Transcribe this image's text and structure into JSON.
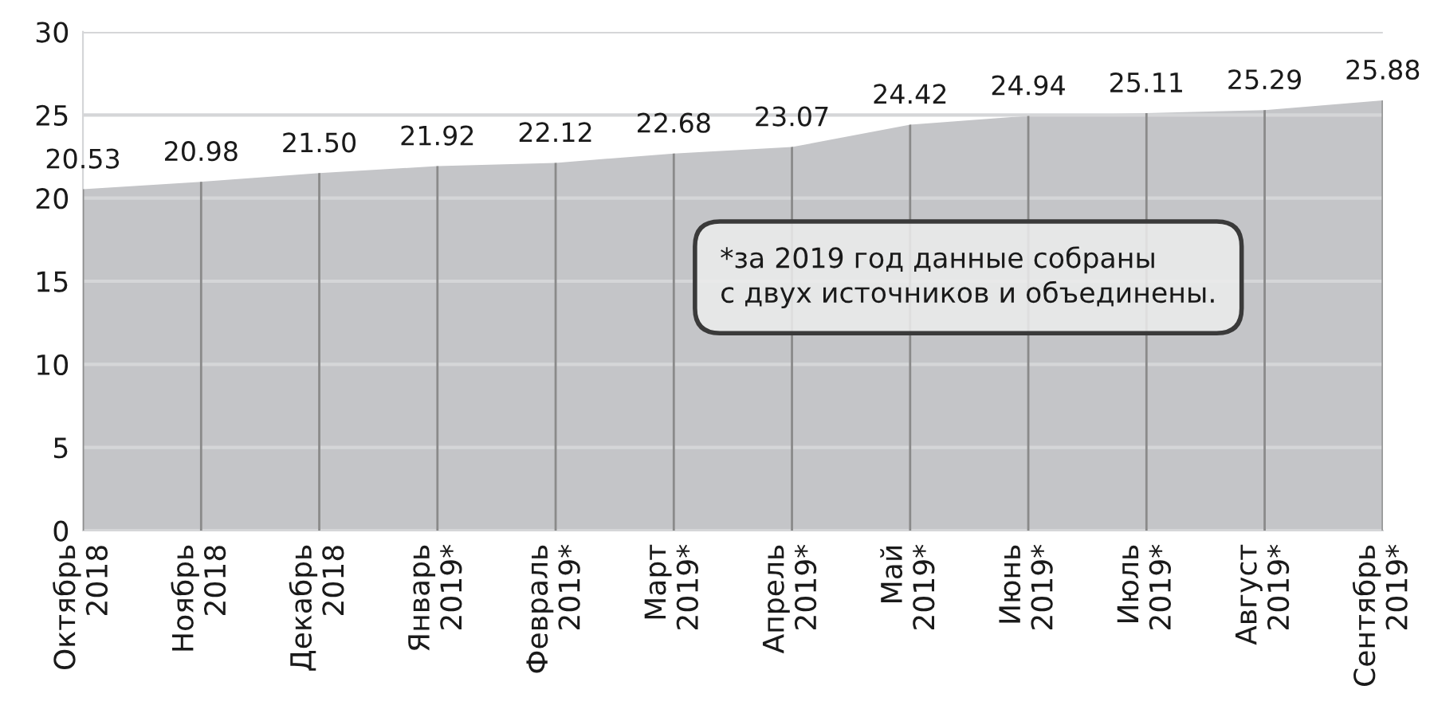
{
  "chart_data": {
    "type": "area",
    "categories": [
      "Октябрь\n2018",
      "Ноябрь\n2018",
      "Декабрь\n2018",
      "Январь\n2019*",
      "Февраль\n2019*",
      "Март\n2019*",
      "Апрель\n2019*",
      "Май\n2019*",
      "Июнь\n2019*",
      "Июль\n2019*",
      "Август\n2019*",
      "Сентябрь\n2019*"
    ],
    "values": [
      20.53,
      20.98,
      21.5,
      21.92,
      22.12,
      22.68,
      23.07,
      24.42,
      24.94,
      25.11,
      25.29,
      25.88
    ],
    "value_labels": [
      "20.53",
      "20.98",
      "21.50",
      "21.92",
      "22.12",
      "22.68",
      "23.07",
      "24.42",
      "24.94",
      "25.11",
      "25.29",
      "25.88"
    ],
    "color": "#c4c5c8",
    "ylim": [
      0,
      30
    ],
    "yticks": [
      0,
      5,
      10,
      15,
      20,
      25,
      30
    ],
    "grid": true,
    "annotations": [
      "*за 2019 год данные собраны\nс двух источников и объединены."
    ]
  }
}
